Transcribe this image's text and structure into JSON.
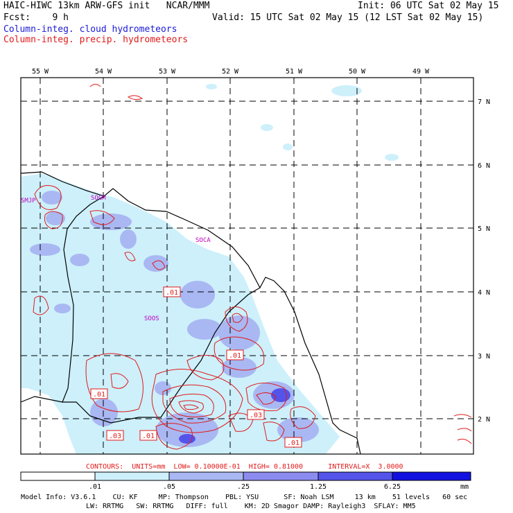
{
  "header": {
    "title": "HAIC-HIWC 13km ARW-GFS init   NCAR/MMM",
    "init": "Init: 06 UTC Sat 02 May 15",
    "fcst": "Fcst:    9 h",
    "valid": "Valid: 15 UTC Sat 02 May 15 (12 LST Sat 02 May 15)",
    "legend_cloud": "Column-integ. cloud hydrometeors",
    "legend_precip": "Column-integ. precip. hydrometeors"
  },
  "map": {
    "lon_labels": [
      "55 W",
      "54 W",
      "53 W",
      "52 W",
      "51 W",
      "50 W",
      "49 W"
    ],
    "lat_labels": [
      "7 N",
      "6 N",
      "5 N",
      "4 N",
      "3 N",
      "2 N"
    ],
    "stations": [
      "SMJP",
      "SOGM",
      "SOCA",
      "SOOS"
    ],
    "contour_labels": [
      ".01",
      ".01",
      ".01",
      ".03",
      ".03",
      ".01",
      ".01"
    ],
    "fill_colors": [
      "#cdf0fb",
      "#a9b8f2",
      "#8c8cf0",
      "#5454ea",
      "#1212e0"
    ]
  },
  "footer": {
    "contours": "CONTOURS:  UNITS=mm  LOW= 0.10000E-01  HIGH= 0.81000      INTERVAL=X  3.0000",
    "colorbar_ticks": [
      ".01",
      ".05",
      ".25",
      "1.25",
      "6.25"
    ],
    "colorbar_unit": "mm",
    "colorbar_colors": [
      "#ffffff",
      "#cdf0fb",
      "#a9b8f2",
      "#8c8cf0",
      "#5454ea",
      "#1212e0"
    ],
    "model_info_1": "Model Info: V3.6.1    CU: KF     MP: Thompson    PBL: YSU      SF: Noah LSM     13 km    51 levels   60 sec",
    "model_info_2": "LW: RRTMG   SW: RRTMG   DIFF: full    KM: 2D Smagor DAMP: Rayleigh3  SFLAY: MM5"
  }
}
